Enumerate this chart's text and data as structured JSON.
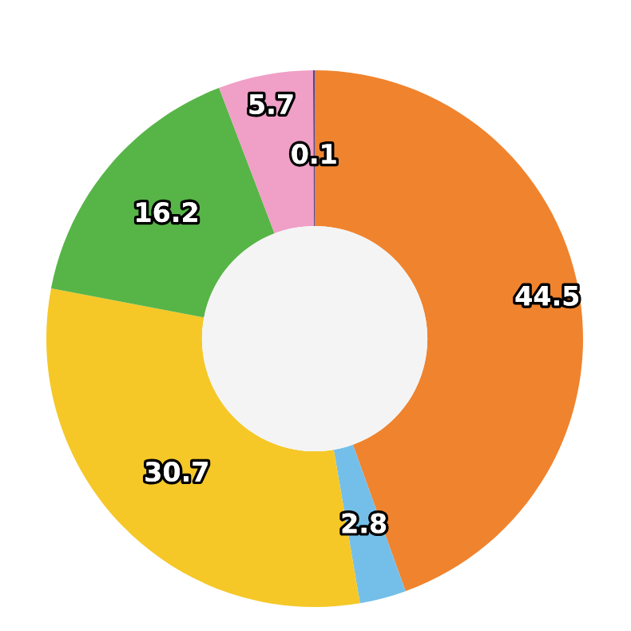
{
  "chart_data": {
    "type": "donut",
    "categories": [
      null,
      null,
      null,
      null,
      null,
      null
    ],
    "values": [
      44.5,
      2.8,
      30.7,
      16.2,
      5.7,
      0.1
    ],
    "colors": [
      "#f0832e",
      "#74bfe9",
      "#f5c828",
      "#57b547",
      "#f09fc7",
      "#4a4aa8"
    ],
    "data_labels": true,
    "legend": false
  }
}
